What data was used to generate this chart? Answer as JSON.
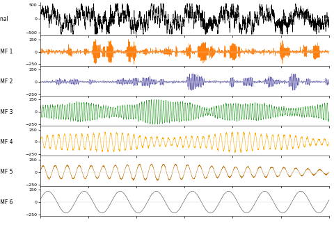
{
  "title": "",
  "n_samples": 4000,
  "fs": 2000,
  "signal_color": "#000000",
  "imf_colors": [
    "#ff7f0e",
    "#5854a8",
    "#2ca02c",
    "#ffaa00",
    "#c47a1a",
    "#444444"
  ],
  "imf_labels": [
    "Signal",
    "IMF 1",
    "IMF 2",
    "IMF 3",
    "IMF 4",
    "IMF 5",
    "IMF 6"
  ],
  "signal_ylim": [
    -600,
    600
  ],
  "imf_ylim": [
    -280,
    280
  ],
  "signal_yticks": [
    500,
    0,
    -500
  ],
  "imf_yticks": [
    250,
    0,
    -250
  ],
  "background_color": "#ffffff",
  "figsize": [
    4.8,
    3.24
  ],
  "dpi": 100,
  "linewidth": 0.4
}
